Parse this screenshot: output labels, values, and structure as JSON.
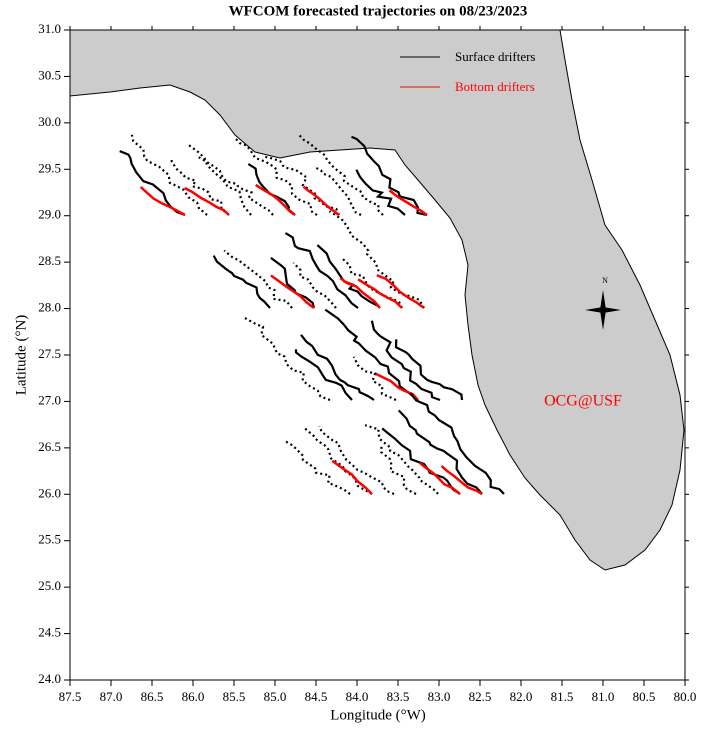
{
  "chart_data": {
    "type": "map",
    "title": "WFCOM forecasted trajectories on 08/23/2023",
    "x_label": "Longitude (°W)",
    "y_label": "Latitude (°N)",
    "xlim": [
      87.5,
      80.0
    ],
    "ylim": [
      24.0,
      31.0
    ],
    "xticks": [
      {
        "value": 87.5,
        "label": "87.5"
      },
      {
        "value": 87,
        "label": "87.0"
      },
      {
        "value": 86.5,
        "label": "86.5"
      },
      {
        "value": 86,
        "label": "86.0"
      },
      {
        "value": 85.5,
        "label": "85.5"
      },
      {
        "value": 85,
        "label": "85.0"
      },
      {
        "value": 84.5,
        "label": "84.5"
      },
      {
        "value": 84,
        "label": "84.0"
      },
      {
        "value": 83.5,
        "label": "83.5"
      },
      {
        "value": 83,
        "label": "83.0"
      },
      {
        "value": 82.5,
        "label": "82.5"
      },
      {
        "value": 82,
        "label": "82.0"
      },
      {
        "value": 81.5,
        "label": "81.5"
      },
      {
        "value": 81,
        "label": "81.0"
      },
      {
        "value": 80.5,
        "label": "80.5"
      },
      {
        "value": 80,
        "label": "80.0"
      }
    ],
    "yticks": [
      {
        "value": 24,
        "label": "24.0"
      },
      {
        "value": 24.5,
        "label": "24.5"
      },
      {
        "value": 25,
        "label": "25.0"
      },
      {
        "value": 25.5,
        "label": "25.5"
      },
      {
        "value": 26,
        "label": "26.0"
      },
      {
        "value": 26.5,
        "label": "26.5"
      },
      {
        "value": 27,
        "label": "27.0"
      },
      {
        "value": 27.5,
        "label": "27.5"
      },
      {
        "value": 28,
        "label": "28.0"
      },
      {
        "value": 28.5,
        "label": "28.5"
      },
      {
        "value": 29,
        "label": "29.0"
      },
      {
        "value": 29.5,
        "label": "29.5"
      },
      {
        "value": 30,
        "label": "30.0"
      },
      {
        "value": 30.5,
        "label": "30.5"
      },
      {
        "value": 31,
        "label": "31.0"
      }
    ],
    "series": [
      {
        "name": "Surface drifters",
        "color": "#000000"
      },
      {
        "name": "Bottom drifters",
        "color": "#ff0000"
      }
    ],
    "annotations": [
      "OCG@USF",
      "N"
    ]
  }
}
